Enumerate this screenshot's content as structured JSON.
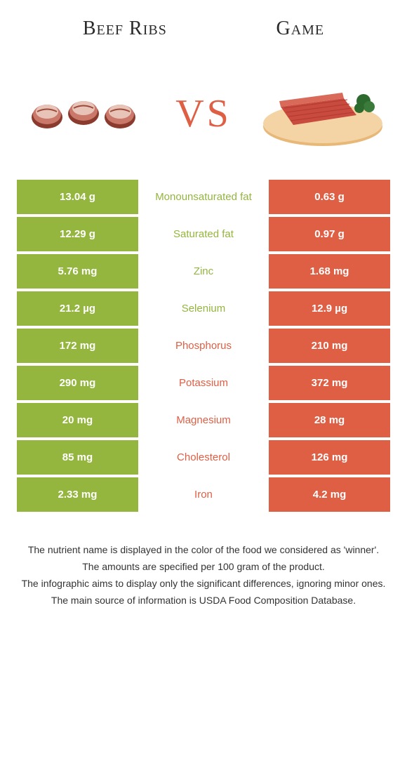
{
  "colors": {
    "green": "#94b63e",
    "orange": "#df5f44",
    "middle_bg": "#ffffff",
    "text_on_color": "#ffffff"
  },
  "header": {
    "left_title": "Beef Ribs",
    "right_title": "Game",
    "vs_text": "VS"
  },
  "rows": [
    {
      "left": "13.04 g",
      "name": "Monounsaturated fat",
      "right": "0.63 g",
      "winner": "left"
    },
    {
      "left": "12.29 g",
      "name": "Saturated fat",
      "right": "0.97 g",
      "winner": "left"
    },
    {
      "left": "5.76 mg",
      "name": "Zinc",
      "right": "1.68 mg",
      "winner": "left"
    },
    {
      "left": "21.2 µg",
      "name": "Selenium",
      "right": "12.9 µg",
      "winner": "left"
    },
    {
      "left": "172 mg",
      "name": "Phosphorus",
      "right": "210 mg",
      "winner": "right"
    },
    {
      "left": "290 mg",
      "name": "Potassium",
      "right": "372 mg",
      "winner": "right"
    },
    {
      "left": "20 mg",
      "name": "Magnesium",
      "right": "28 mg",
      "winner": "right"
    },
    {
      "left": "85 mg",
      "name": "Cholesterol",
      "right": "126 mg",
      "winner": "right"
    },
    {
      "left": "2.33 mg",
      "name": "Iron",
      "right": "4.2 mg",
      "winner": "right"
    }
  ],
  "footer": {
    "line1": "The nutrient name is displayed in the color of the food we considered as 'winner'.",
    "line2": "The amounts are specified per 100 gram of the product.",
    "line3": "The infographic aims to display only the significant differences, ignoring minor ones.",
    "line4": "The main source of information is USDA Food Composition Database."
  }
}
